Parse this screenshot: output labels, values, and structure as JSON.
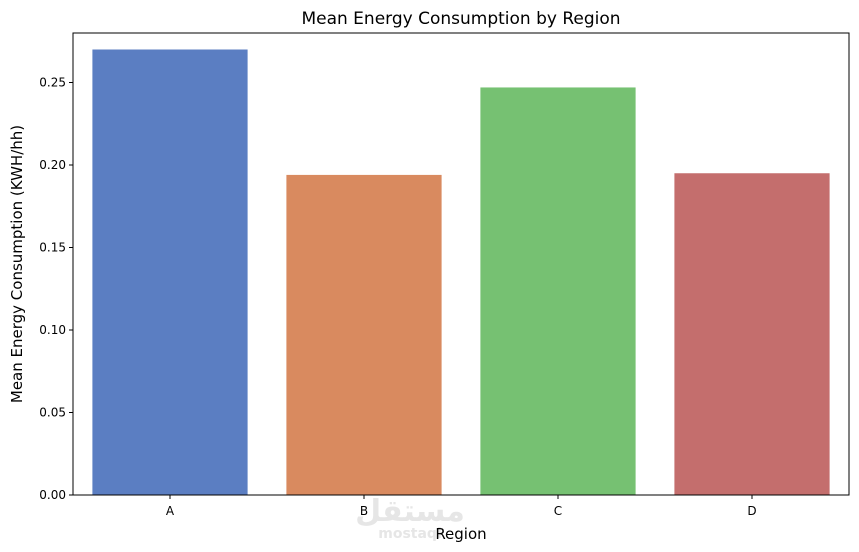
{
  "chart_data": {
    "type": "bar",
    "title": "Mean Energy Consumption by Region",
    "xlabel": "Region",
    "ylabel": "Mean Energy Consumption (KWH/hh)",
    "categories": [
      "A",
      "B",
      "C",
      "D"
    ],
    "values": [
      0.27,
      0.194,
      0.247,
      0.195
    ],
    "colors": [
      "#5b7ec2",
      "#d98a5f",
      "#76c172",
      "#c46e6d"
    ],
    "ylim": [
      0,
      0.28
    ],
    "yticks": [
      0.0,
      0.05,
      0.1,
      0.15,
      0.2,
      0.25
    ],
    "ytick_labels": [
      "0.00",
      "0.05",
      "0.10",
      "0.15",
      "0.20",
      "0.25"
    ],
    "grid": false,
    "legend": "none"
  },
  "watermark": {
    "arabic": "مستقل",
    "latin": "mostaql"
  }
}
